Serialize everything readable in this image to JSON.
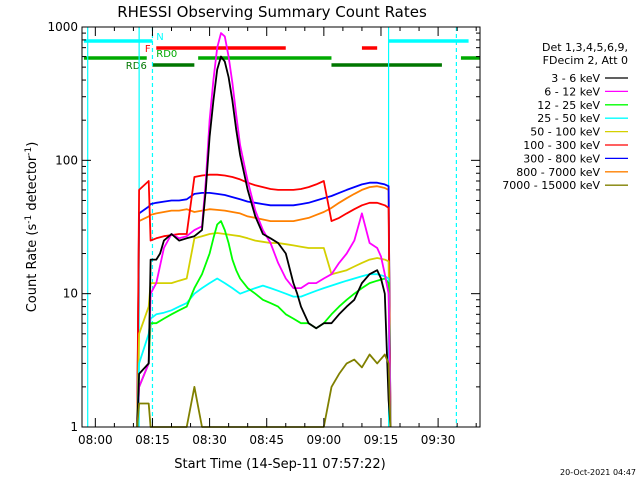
{
  "chart_data": {
    "type": "line",
    "title": "RHESSI Observing Summary Count Rates",
    "xlabel": "Start Time (14-Sep-11 07:57:22)",
    "ylabel": "Count Rate (s^-1 detector^-1)",
    "ylabel_parts": [
      "Count Rate (s",
      "-1",
      " detector",
      "-1",
      ")"
    ],
    "yscale": "log",
    "xlim": [
      -3.5,
      101
    ],
    "ylim": [
      1,
      1000
    ],
    "x_unit": "minutes after 08:00 UT",
    "x_ticks": [
      {
        "x": 0,
        "label": "08:00"
      },
      {
        "x": 15,
        "label": "08:15"
      },
      {
        "x": 30,
        "label": "08:30"
      },
      {
        "x": 45,
        "label": "08:45"
      },
      {
        "x": 60,
        "label": "09:00"
      },
      {
        "x": 75,
        "label": "09:15"
      },
      {
        "x": 90,
        "label": "09:30"
      }
    ],
    "y_ticks": [
      {
        "y": 1,
        "label": "1"
      },
      {
        "y": 10,
        "label": "10"
      },
      {
        "y": 100,
        "label": "100"
      },
      {
        "y": 1000,
        "label": "1000"
      }
    ],
    "legend_position": "right",
    "legend_header": [
      "Det 1,3,4,5,6,9,",
      "FDecim 2, Att 0"
    ],
    "series": [
      {
        "name": "3 - 6 keV",
        "color": "#000000",
        "x": [
          11,
          11.5,
          14,
          14.5,
          16,
          17,
          18,
          20,
          22,
          24,
          26,
          28,
          29,
          30,
          31,
          32,
          33,
          34,
          35,
          36,
          37,
          38,
          40,
          42,
          44,
          46,
          48,
          50,
          52,
          53,
          54,
          56,
          58,
          60,
          61,
          62,
          64,
          66,
          68,
          70,
          72,
          74,
          75,
          76,
          77,
          77.5
        ],
        "y": [
          1,
          2.5,
          3,
          18,
          18,
          20,
          25,
          28,
          25,
          26,
          27,
          30,
          60,
          150,
          280,
          480,
          600,
          550,
          420,
          280,
          170,
          110,
          60,
          38,
          28,
          26,
          24,
          20,
          12,
          10,
          8,
          6,
          5.5,
          6,
          6,
          6,
          7,
          8,
          9,
          12,
          14,
          15,
          13,
          10,
          1.6,
          1
        ]
      },
      {
        "name": "6 - 12 keV",
        "color": "#ff00ff",
        "x": [
          11,
          11.5,
          14,
          14.5,
          16,
          18,
          20,
          22,
          24,
          26,
          28,
          29,
          30,
          31,
          32,
          33,
          34,
          35,
          36,
          37,
          38,
          40,
          42,
          44,
          46,
          48,
          50,
          52,
          54,
          56,
          58,
          60,
          62,
          64,
          66,
          68,
          70,
          72,
          74,
          75,
          76,
          77,
          77.5
        ],
        "y": [
          1,
          2,
          3,
          10,
          12,
          22,
          28,
          26,
          27,
          30,
          32,
          70,
          200,
          400,
          700,
          900,
          850,
          600,
          380,
          220,
          130,
          70,
          42,
          30,
          24,
          17,
          13,
          11,
          11,
          12,
          12,
          13,
          14,
          17,
          20,
          25,
          40,
          24,
          22,
          19,
          14,
          10,
          1
        ]
      },
      {
        "name": "12 - 25 keV",
        "color": "#00ff00",
        "x": [
          11,
          11.5,
          14,
          14.5,
          16,
          18,
          20,
          22,
          24,
          26,
          28,
          30,
          31,
          32,
          33,
          34,
          35,
          36,
          37,
          38,
          40,
          42,
          44,
          46,
          48,
          50,
          52,
          54,
          56,
          58,
          60,
          62,
          64,
          66,
          68,
          70,
          72,
          74,
          76,
          77,
          77.5
        ],
        "y": [
          1,
          2,
          3,
          6,
          6,
          6.5,
          7,
          7.5,
          8,
          11,
          14,
          20,
          26,
          33,
          35,
          30,
          24,
          18,
          15,
          13,
          11,
          10,
          9,
          8.5,
          8,
          7,
          6.5,
          6,
          6,
          5.5,
          6,
          7,
          8,
          9,
          10,
          11,
          12,
          12.5,
          13,
          12,
          1
        ]
      },
      {
        "name": "25 - 50 keV",
        "color": "#00ffff",
        "x": [
          11,
          11.5,
          14,
          14.5,
          16,
          18,
          20,
          22,
          24,
          26,
          28,
          30,
          32,
          34,
          36,
          38,
          40,
          42,
          44,
          46,
          48,
          50,
          52,
          54,
          56,
          58,
          60,
          62,
          64,
          66,
          68,
          70,
          72,
          74,
          76,
          77,
          77.5
        ],
        "y": [
          1,
          3,
          5,
          6.5,
          7,
          7.2,
          7.5,
          8,
          8.5,
          10,
          11,
          12,
          13,
          12,
          11,
          10,
          10.5,
          11,
          11.5,
          11,
          10.5,
          10,
          9.5,
          9.5,
          10,
          10.5,
          11,
          11.5,
          12,
          12.5,
          13,
          13.5,
          14,
          14,
          13.5,
          13,
          1
        ]
      },
      {
        "name": "50 - 100 keV",
        "color": "#d4d000",
        "x": [
          11,
          11.5,
          14,
          14.5,
          16,
          18,
          20,
          22,
          24,
          26,
          28,
          30,
          32,
          34,
          36,
          38,
          40,
          42,
          44,
          46,
          48,
          50,
          52,
          54,
          56,
          58,
          60,
          62,
          64,
          66,
          68,
          70,
          72,
          74,
          76,
          77,
          77.5
        ],
        "y": [
          1,
          5,
          8,
          12,
          12,
          12,
          12,
          12.5,
          13,
          26,
          27,
          28,
          28.5,
          28,
          27.5,
          27,
          26,
          25,
          24.5,
          24,
          24,
          23.5,
          23,
          22.5,
          22,
          22,
          22,
          14,
          14.5,
          15,
          16,
          17,
          18,
          18.5,
          18,
          17.5,
          1
        ]
      },
      {
        "name": "100 - 300 keV",
        "color": "#ff0000",
        "x": [
          11,
          11.5,
          14,
          14.5,
          16,
          18,
          20,
          22,
          24,
          26,
          28,
          30,
          32,
          34,
          36,
          38,
          40,
          42,
          44,
          46,
          48,
          50,
          52,
          54,
          56,
          58,
          60,
          62,
          64,
          66,
          68,
          70,
          72,
          74,
          76,
          77,
          77.5
        ],
        "y": [
          1,
          60,
          70,
          25,
          26,
          27,
          27.5,
          28,
          28,
          75,
          77,
          78,
          78,
          77,
          75,
          72,
          68,
          65,
          63,
          61,
          60,
          60,
          60,
          61,
          63,
          66,
          70,
          35,
          37,
          40,
          43,
          46,
          48,
          48,
          46,
          44,
          1
        ]
      },
      {
        "name": "300 - 800 keV",
        "color": "#0000ff",
        "x": [
          11,
          11.5,
          14,
          14.5,
          16,
          18,
          20,
          22,
          24,
          26,
          28,
          30,
          32,
          34,
          36,
          38,
          40,
          42,
          44,
          46,
          48,
          50,
          52,
          54,
          56,
          58,
          60,
          62,
          64,
          66,
          68,
          70,
          72,
          74,
          76,
          77,
          77.5
        ],
        "y": [
          1,
          40,
          45,
          47,
          48,
          49,
          50,
          50,
          51,
          56,
          57,
          57,
          56,
          55,
          53,
          51,
          49,
          48,
          47,
          46,
          46,
          46,
          46,
          47,
          48,
          50,
          52,
          54,
          57,
          60,
          63,
          66,
          68,
          68,
          66,
          64,
          1
        ]
      },
      {
        "name": "800 - 7000 keV",
        "color": "#ff8000",
        "x": [
          11,
          11.5,
          14,
          14.5,
          16,
          18,
          20,
          22,
          24,
          26,
          28,
          30,
          32,
          34,
          36,
          38,
          40,
          42,
          44,
          46,
          48,
          50,
          52,
          54,
          56,
          58,
          60,
          62,
          64,
          66,
          68,
          70,
          72,
          74,
          76,
          77,
          77.5
        ],
        "y": [
          1,
          35,
          38,
          39,
          40,
          41,
          42,
          42,
          43,
          41,
          42,
          43,
          42.5,
          42,
          41,
          40,
          38,
          37,
          36,
          35,
          35,
          35,
          35,
          36,
          37,
          39,
          41,
          44,
          48,
          52,
          56,
          60,
          63,
          64,
          62,
          60,
          1
        ]
      },
      {
        "name": "7000 - 15000 keV",
        "color": "#808000",
        "x": [
          11,
          11.5,
          14,
          14.5,
          16,
          18,
          20,
          24,
          26,
          28,
          30,
          40,
          50,
          60,
          62,
          64,
          66,
          68,
          70,
          72,
          74,
          76,
          77,
          77.5
        ],
        "y": [
          1,
          1.5,
          1.5,
          1,
          1,
          1,
          1,
          1,
          2,
          1,
          1,
          1,
          1,
          1,
          2,
          2.5,
          3,
          3.2,
          2.8,
          3.5,
          3,
          3.5,
          3,
          1
        ]
      }
    ],
    "vertical_lines": [
      {
        "x": -2,
        "color": "#00ffff",
        "style": "solid"
      },
      {
        "x": 11.5,
        "color": "#00ffff",
        "style": "solid"
      },
      {
        "x": 15,
        "color": "#00ffff",
        "style": "dashed"
      },
      {
        "x": 77,
        "color": "#00ffff",
        "style": "solid"
      },
      {
        "x": 94.8,
        "color": "#00ffff",
        "style": "dashed"
      }
    ],
    "flag_bars": [
      {
        "label": "N",
        "color": "#00ffff",
        "y": 0,
        "segments": [
          [
            -3,
            15
          ],
          [
            77,
            98
          ]
        ],
        "label_x": 16
      },
      {
        "label": "F",
        "color": "#ff0000",
        "y": 1,
        "segments": [
          [
            16,
            50
          ],
          [
            70,
            74
          ]
        ],
        "label_x": 13
      },
      {
        "label": "RD0",
        "color": "#00aa00",
        "y": 2,
        "segments": [
          [
            -3,
            13.5
          ],
          [
            27,
            62
          ],
          [
            96,
            101
          ]
        ],
        "label_x": 16
      },
      {
        "label": "RD6",
        "color": "#007700",
        "y": 3,
        "segments": [
          [
            15,
            26
          ],
          [
            62,
            91
          ]
        ],
        "label_x": 8
      }
    ],
    "footer_date": "20-Oct-2021 04:47"
  }
}
